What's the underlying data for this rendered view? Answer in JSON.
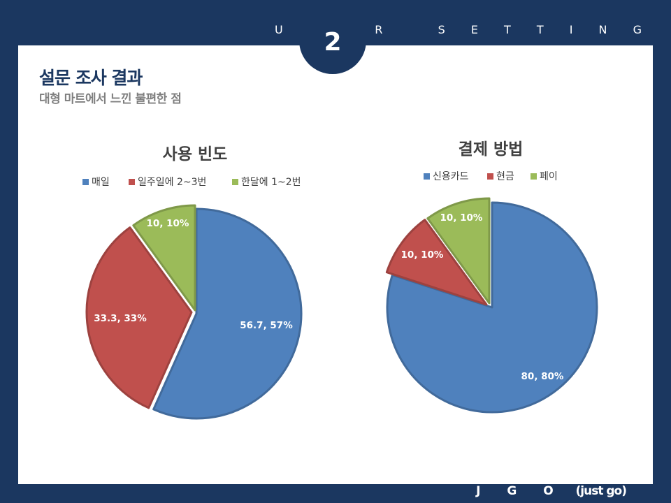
{
  "header": {
    "label": "U S E R   S E T T I N G"
  },
  "badge": {
    "number": "2"
  },
  "slide": {
    "title": "설문 조사 결과",
    "subtitle": "대형 마트에서 느낀 불편한 점"
  },
  "footer": {
    "brand": "J G O",
    "tagline": "(just go)"
  },
  "colors": {
    "blue": "#4f81bd",
    "red": "#c0504d",
    "green": "#9bbb59",
    "navy": "#1b3760"
  },
  "chart_data": [
    {
      "type": "pie",
      "title": "사용 빈도",
      "legend_position": "top",
      "slices": [
        {
          "label": "매일",
          "value": 56.7,
          "data_label": "56.7, 57%",
          "color": "#4f81bd"
        },
        {
          "label": "일주일에 2~3번",
          "value": 33.3,
          "data_label": "33.3, 33%",
          "color": "#c0504d"
        },
        {
          "label": "한달에 1~2번",
          "value": 10,
          "data_label": "10, 10%",
          "color": "#9bbb59"
        }
      ]
    },
    {
      "type": "pie",
      "title": "결제 방법",
      "legend_position": "top",
      "slices": [
        {
          "label": "신용카드",
          "value": 80,
          "data_label": "80, 80%",
          "color": "#4f81bd"
        },
        {
          "label": "현금",
          "value": 10,
          "data_label": "10, 10%",
          "color": "#c0504d"
        },
        {
          "label": "페이",
          "value": 10,
          "data_label": "10, 10%",
          "color": "#9bbb59"
        }
      ]
    }
  ]
}
